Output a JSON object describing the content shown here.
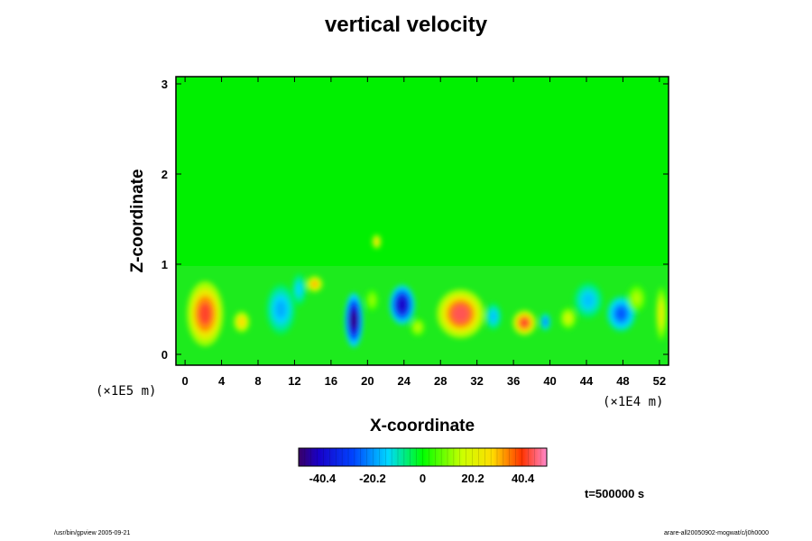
{
  "chart_data": {
    "type": "heatmap",
    "title": "vertical velocity",
    "xlabel": "X-coordinate",
    "ylabel": "Z-coordinate",
    "x_unit": "(×1E4 m)",
    "y_unit": "(×1E5 m)",
    "xlim": [
      -1,
      53
    ],
    "ylim": [
      -0.12,
      3.08
    ],
    "x_ticks": [
      "0",
      "4",
      "8",
      "12",
      "16",
      "20",
      "24",
      "28",
      "32",
      "36",
      "40",
      "44",
      "48",
      "52"
    ],
    "y_ticks": [
      "0",
      "1",
      "2",
      "3"
    ],
    "colorbar": {
      "range": [
        -50,
        50
      ],
      "tick_labels": [
        "-40.4",
        "-20.2",
        "0",
        "20.2",
        "40.4"
      ],
      "tick_values": [
        -40.4,
        -20.2,
        0,
        20.2,
        40.4
      ]
    },
    "features": [
      {
        "x": 2.2,
        "z": 0.45,
        "value": 42,
        "rx": 2.0,
        "rz": 0.36
      },
      {
        "x": 6.2,
        "z": 0.36,
        "value": 28,
        "rx": 0.9,
        "rz": 0.12
      },
      {
        "x": 10.5,
        "z": 0.5,
        "value": -18,
        "rx": 1.6,
        "rz": 0.28
      },
      {
        "x": 14.2,
        "z": 0.78,
        "value": 32,
        "rx": 0.9,
        "rz": 0.09
      },
      {
        "x": 12.5,
        "z": 0.72,
        "value": -14,
        "rx": 0.8,
        "rz": 0.18
      },
      {
        "x": 18.5,
        "z": 0.38,
        "value": -48,
        "rx": 1.0,
        "rz": 0.3
      },
      {
        "x": 20.5,
        "z": 0.6,
        "value": 12,
        "rx": 0.7,
        "rz": 0.12
      },
      {
        "x": 21.0,
        "z": 1.25,
        "value": 28,
        "rx": 0.5,
        "rz": 0.08
      },
      {
        "x": 23.8,
        "z": 0.55,
        "value": -42,
        "rx": 1.4,
        "rz": 0.22
      },
      {
        "x": 25.5,
        "z": 0.3,
        "value": 15,
        "rx": 0.8,
        "rz": 0.1
      },
      {
        "x": 30.2,
        "z": 0.45,
        "value": 44,
        "rx": 2.6,
        "rz": 0.27
      },
      {
        "x": 33.8,
        "z": 0.42,
        "value": -16,
        "rx": 0.9,
        "rz": 0.15
      },
      {
        "x": 37.2,
        "z": 0.35,
        "value": 42,
        "rx": 1.3,
        "rz": 0.14
      },
      {
        "x": 39.5,
        "z": 0.36,
        "value": -22,
        "rx": 0.6,
        "rz": 0.1
      },
      {
        "x": 42.0,
        "z": 0.4,
        "value": 18,
        "rx": 0.9,
        "rz": 0.12
      },
      {
        "x": 44.2,
        "z": 0.6,
        "value": -16,
        "rx": 1.6,
        "rz": 0.2
      },
      {
        "x": 47.8,
        "z": 0.45,
        "value": -26,
        "rx": 1.6,
        "rz": 0.2
      },
      {
        "x": 49.5,
        "z": 0.62,
        "value": 14,
        "rx": 1.0,
        "rz": 0.15
      },
      {
        "x": 52.2,
        "z": 0.45,
        "value": 22,
        "rx": 0.6,
        "rz": 0.3
      }
    ]
  },
  "time_label": "t=500000 s",
  "footer_left": "/usr/bin/gpview 2005-09-21",
  "footer_right": "arare-all20050902-mogwat/c/j0h0000"
}
